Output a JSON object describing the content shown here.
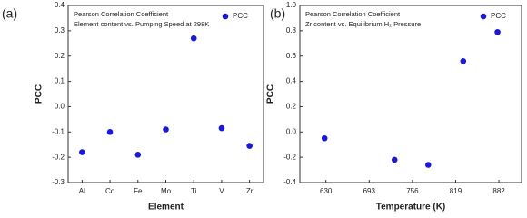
{
  "chart_data": [
    {
      "type": "scatter",
      "panel_label": "(a)",
      "annotation": [
        "Pearson Correlation Coefficient",
        "Element content vs. Pumping Speed at 298K"
      ],
      "x_label": "Element",
      "y_label": "PCC",
      "categories": [
        "Al",
        "Co",
        "Fe",
        "Mo",
        "Ti",
        "V",
        "Zr"
      ],
      "series": [
        {
          "name": "PCC",
          "color": "#1a1ad6",
          "values": [
            -0.18,
            -0.1,
            -0.19,
            -0.09,
            0.27,
            -0.085,
            -0.155
          ]
        }
      ],
      "ylim": [
        -0.3,
        0.4
      ],
      "yticks": [
        -0.3,
        -0.2,
        -0.1,
        {
          "value": 0,
          "label": "0.0"
        },
        0.1,
        0.2,
        0.3,
        0.4
      ],
      "legend": "upper right"
    },
    {
      "type": "scatter",
      "panel_label": "(b)",
      "annotation": [
        "Pearson Correlation Coefficient",
        "Zr content vs. Equilibrium H₂ Pressure"
      ],
      "x_label": "Temperature (K)",
      "y_label": "PCC",
      "x": [
        628,
        730,
        779,
        830,
        880
      ],
      "series": [
        {
          "name": "PCC",
          "color": "#1a1ad6",
          "values": [
            -0.05,
            -0.22,
            -0.26,
            0.56,
            0.79
          ]
        }
      ],
      "xlim": [
        592,
        915
      ],
      "xticks": [
        630,
        693,
        756,
        819,
        882
      ],
      "ylim": [
        -0.4,
        1.0
      ],
      "yticks": [
        -0.4,
        -0.2,
        {
          "value": 0,
          "label": "0.0"
        },
        0.2,
        0.4,
        0.6,
        0.8,
        {
          "value": 1,
          "label": "1.0"
        }
      ],
      "legend": "upper right"
    }
  ]
}
